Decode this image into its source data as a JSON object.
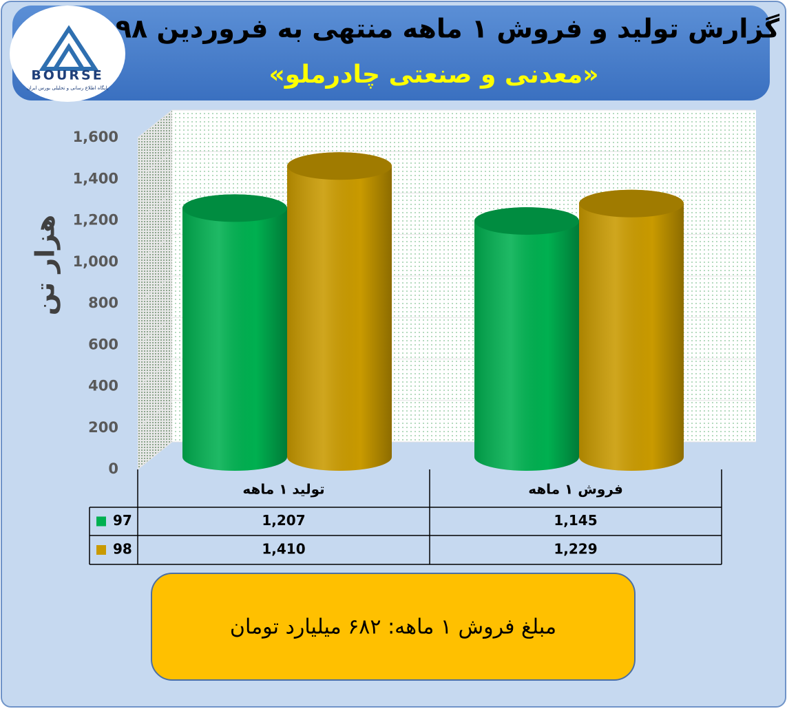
{
  "logo": {
    "text": "BOURSE",
    "caption": "پایگاه اطلاع رسانی و تحلیلی بورس ایران"
  },
  "chart_data": {
    "type": "bar",
    "title": "گزارش تولید و فروش ۱ ماهه منتهی به فروردین ۹۸",
    "subtitle": "«معدنی و صنعتی چادرملو»",
    "y_label": "هزار تن",
    "categories": [
      "تولید ۱ ماهه",
      "فروش ۱ ماهه"
    ],
    "series": [
      {
        "name": "97",
        "color": "#00b050",
        "values": [
          1207,
          1145
        ],
        "value_labels": [
          "1,207",
          "1,145"
        ]
      },
      {
        "name": "98",
        "color": "#c99a00",
        "values": [
          1410,
          1229
        ],
        "value_labels": [
          "1,410",
          "1,229"
        ]
      }
    ],
    "ylim": [
      0,
      1600
    ],
    "yticks": [
      0,
      200,
      400,
      600,
      800,
      {
        "value": 1000,
        "label": "1,000"
      },
      {
        "value": 1200,
        "label": "1,200"
      },
      {
        "value": 1400,
        "label": "1,400"
      },
      {
        "value": 1600,
        "label": "1,600"
      }
    ],
    "grid": true,
    "annotation": "مبلغ فروش ۱ ماهه: ۶۸۲ میلیارد تومان"
  }
}
